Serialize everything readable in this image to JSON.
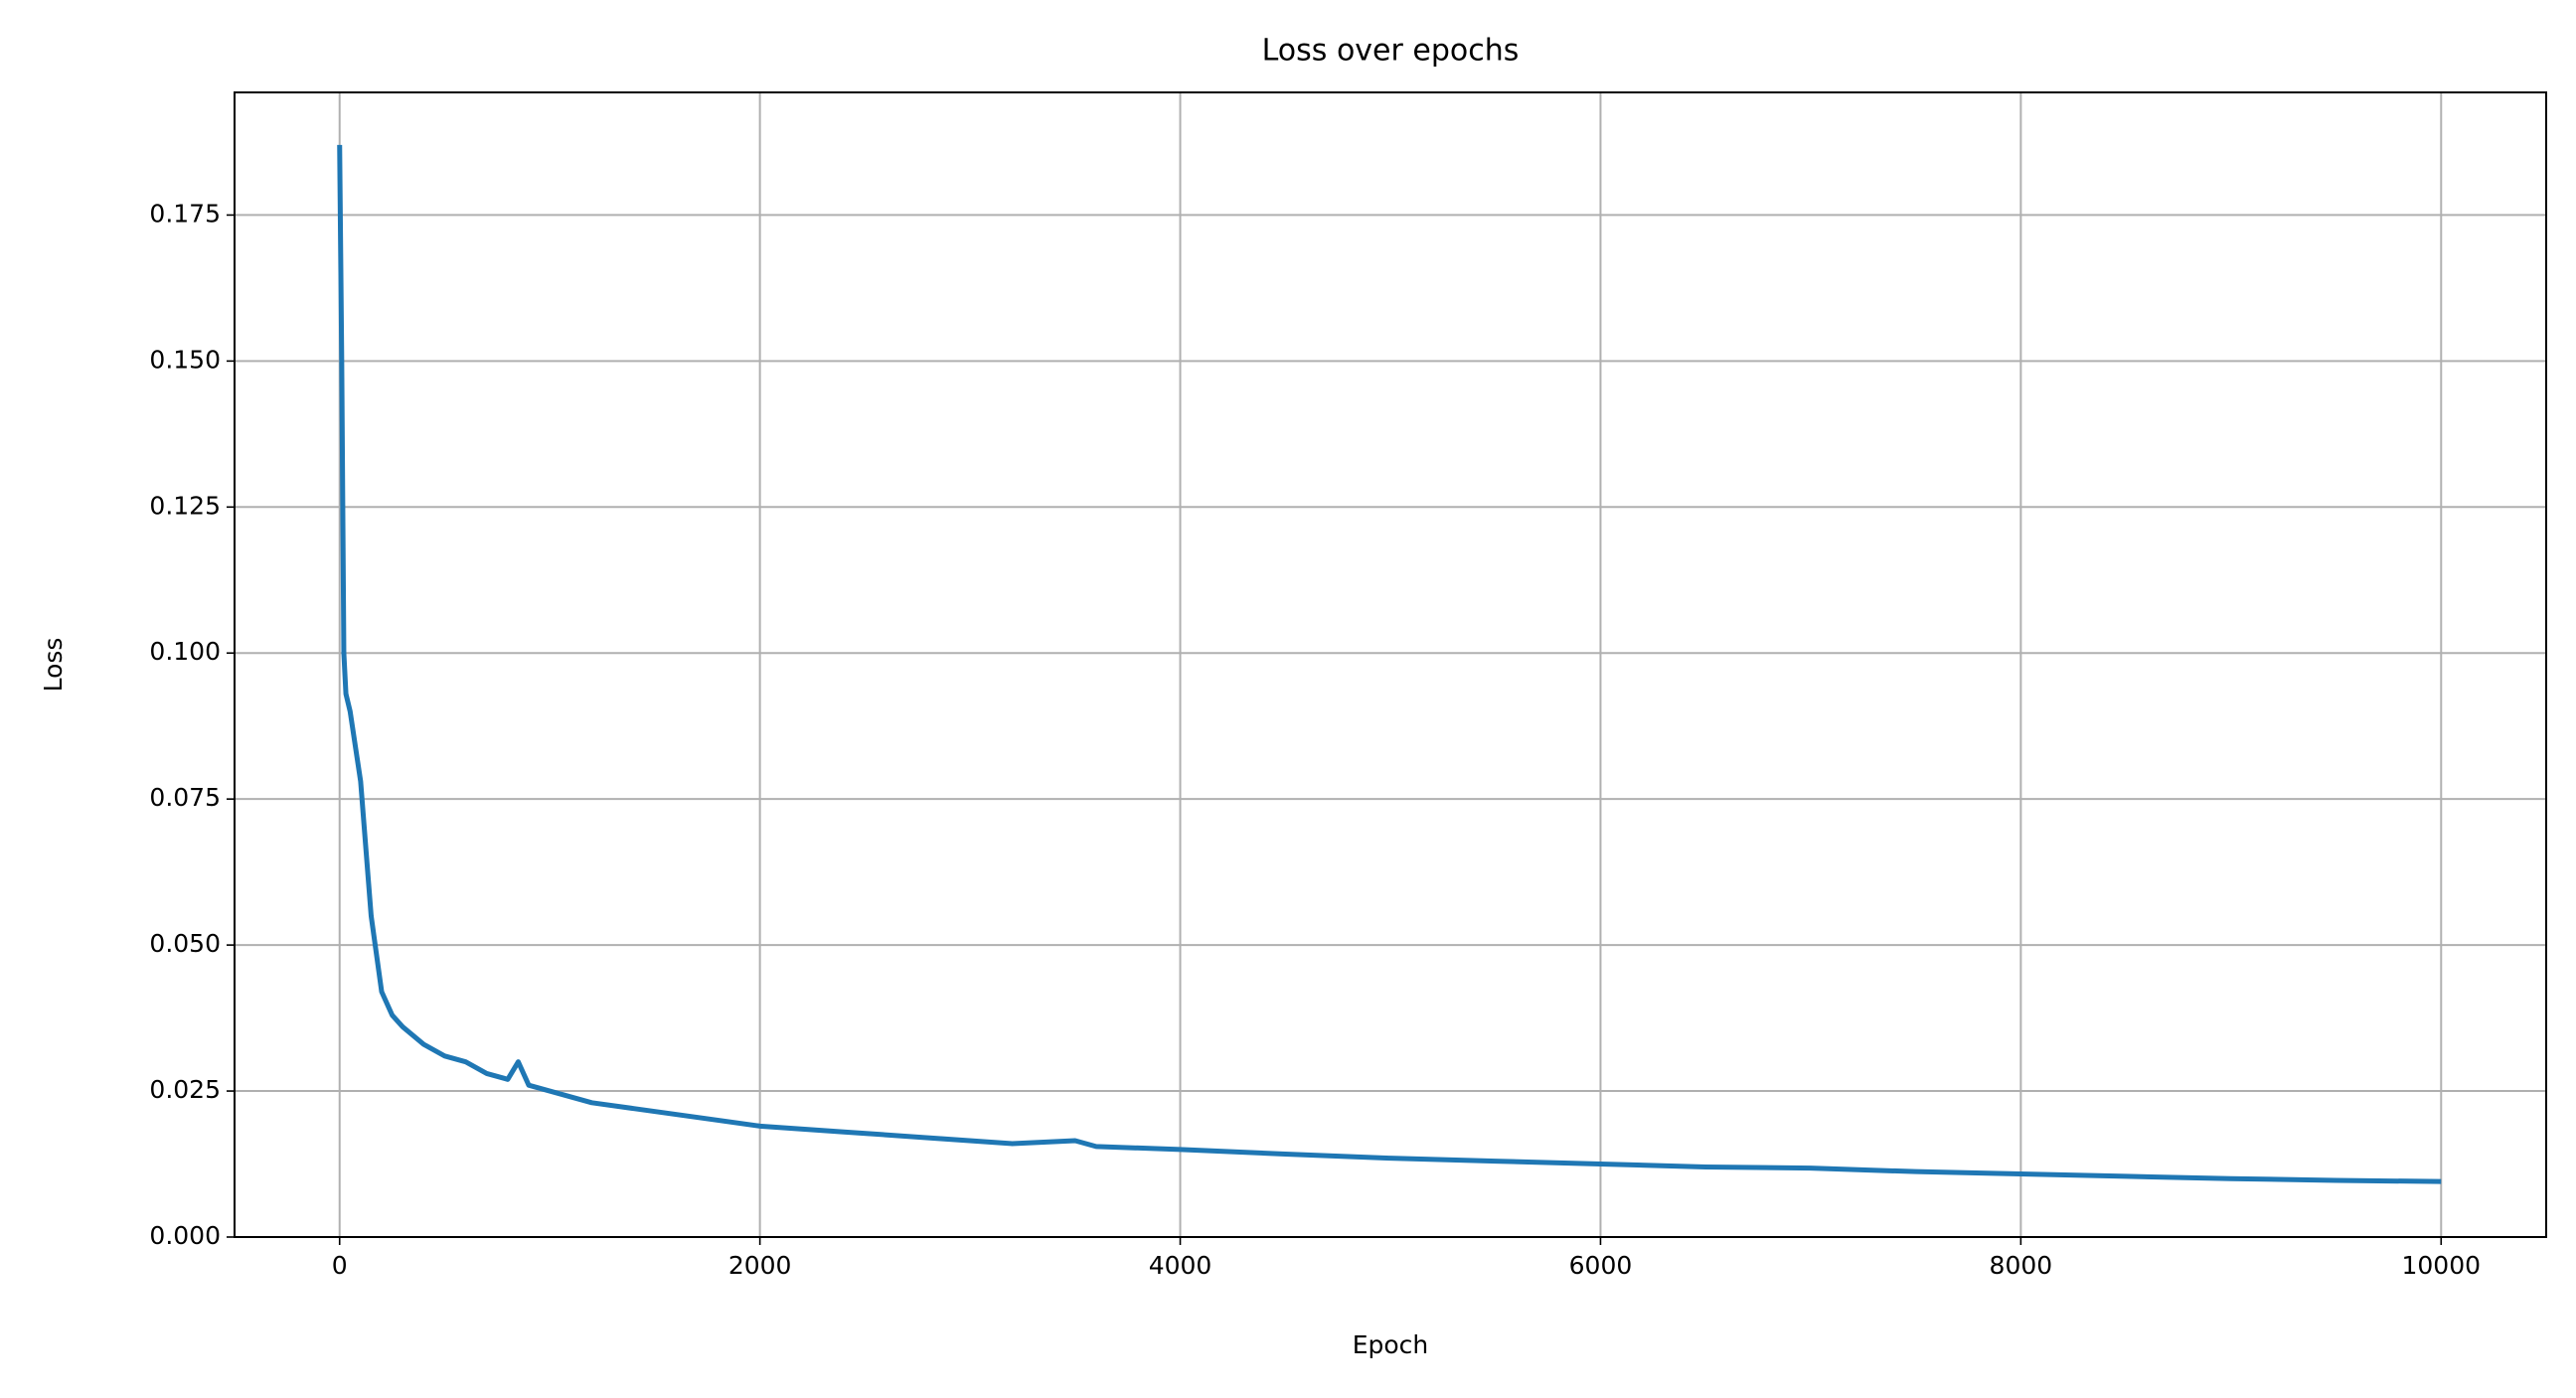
{
  "chart_data": {
    "type": "line",
    "title": "Loss over epochs",
    "x_label": "Epoch",
    "y_label": "Loss",
    "x": [
      0,
      10,
      20,
      30,
      50,
      100,
      150,
      200,
      250,
      300,
      400,
      500,
      600,
      700,
      800,
      850,
      900,
      1000,
      1200,
      1400,
      1600,
      1800,
      2000,
      2400,
      2800,
      3200,
      3500,
      3600,
      4000,
      4500,
      5000,
      5500,
      6000,
      6500,
      7000,
      7500,
      8000,
      8500,
      9000,
      9500,
      10000
    ],
    "series": [
      {
        "name": "Loss",
        "color": "#1f77b4",
        "values": [
          0.187,
          0.15,
          0.1,
          0.093,
          0.09,
          0.078,
          0.055,
          0.042,
          0.038,
          0.036,
          0.033,
          0.031,
          0.03,
          0.028,
          0.027,
          0.03,
          0.026,
          0.025,
          0.023,
          0.022,
          0.021,
          0.02,
          0.019,
          0.018,
          0.017,
          0.016,
          0.0165,
          0.0155,
          0.015,
          0.0142,
          0.0135,
          0.013,
          0.0125,
          0.012,
          0.0118,
          0.0112,
          0.0108,
          0.0104,
          0.01,
          0.0097,
          0.0095
        ]
      }
    ],
    "xlim": [
      -500,
      10500
    ],
    "xticks": [
      0,
      2000,
      4000,
      6000,
      8000,
      10000
    ],
    "ylim": [
      0,
      0.196
    ],
    "yticks": [
      {
        "value": 0,
        "label": "0.000"
      },
      {
        "value": 0.025,
        "label": "0.025"
      },
      {
        "value": 0.05,
        "label": "0.050"
      },
      {
        "value": 0.075,
        "label": "0.075"
      },
      {
        "value": 0.1,
        "label": "0.100"
      },
      {
        "value": 0.125,
        "label": "0.125"
      },
      {
        "value": 0.15,
        "label": "0.150"
      },
      {
        "value": 0.175,
        "label": "0.175"
      }
    ],
    "grid": true
  }
}
